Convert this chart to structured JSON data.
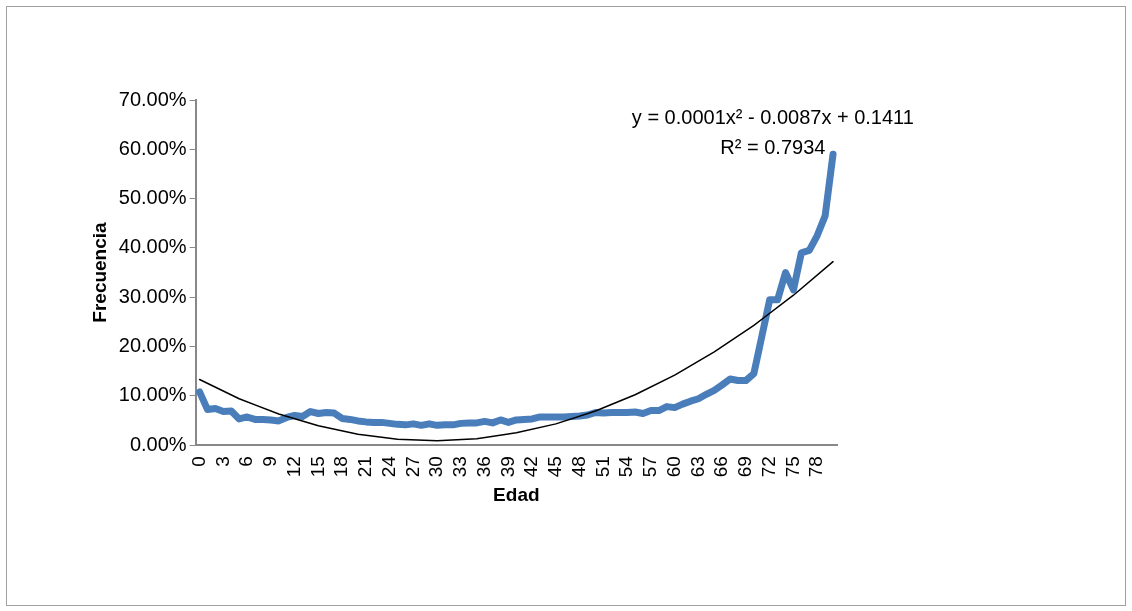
{
  "chart_data": {
    "type": "line",
    "xlabel": "Edad",
    "ylabel": "Frecuencia",
    "annotations": [
      "y = 0.0001x² - 0.0087x + 0.1411",
      "R² = 0.7934"
    ],
    "xlim": [
      -0.5,
      80.5
    ],
    "xticks": [
      0,
      3,
      6,
      9,
      12,
      15,
      18,
      21,
      24,
      27,
      30,
      33,
      36,
      39,
      42,
      45,
      48,
      51,
      54,
      57,
      60,
      63,
      66,
      69,
      72,
      75,
      78
    ],
    "ylim": [
      0,
      70
    ],
    "yticks": [
      {
        "value": 0,
        "label": "0.00%"
      },
      {
        "value": 10,
        "label": "10.00%"
      },
      {
        "value": 20,
        "label": "20.00%"
      },
      {
        "value": 30,
        "label": "30.00%"
      },
      {
        "value": 40,
        "label": "40.00%"
      },
      {
        "value": 50,
        "label": "50.00%"
      },
      {
        "value": 60,
        "label": "60.00%"
      },
      {
        "value": 70,
        "label": "70.00%"
      }
    ],
    "grid": false,
    "legend": false,
    "marker": "none",
    "line_style": "solid",
    "series": [
      {
        "color": "#4a7ebb",
        "x": [
          0,
          1,
          2,
          3,
          4,
          5,
          6,
          7,
          8,
          9,
          10,
          11,
          12,
          13,
          14,
          15,
          16,
          17,
          18,
          19,
          20,
          21,
          22,
          23,
          24,
          25,
          26,
          27,
          28,
          29,
          30,
          31,
          32,
          33,
          34,
          35,
          36,
          37,
          38,
          39,
          40,
          41,
          42,
          43,
          44,
          45,
          46,
          47,
          48,
          49,
          50,
          51,
          52,
          53,
          54,
          55,
          56,
          57,
          58,
          59,
          60,
          61,
          62,
          63,
          64,
          65,
          66,
          67,
          68,
          69,
          70,
          71,
          72,
          73,
          74,
          75,
          76,
          77,
          78,
          79,
          80
        ],
        "values": [
          10.8,
          7.2,
          7.4,
          6.8,
          6.9,
          5.3,
          5.7,
          5.2,
          5.2,
          5.1,
          4.9,
          5.6,
          6.0,
          5.8,
          6.8,
          6.4,
          6.6,
          6.5,
          5.4,
          5.2,
          4.9,
          4.7,
          4.6,
          4.6,
          4.4,
          4.2,
          4.1,
          4.3,
          4.0,
          4.3,
          4.0,
          4.1,
          4.1,
          4.4,
          4.5,
          4.5,
          4.8,
          4.5,
          5.1,
          4.6,
          5.1,
          5.2,
          5.3,
          5.7,
          5.7,
          5.7,
          5.7,
          5.8,
          5.9,
          6.1,
          6.6,
          6.5,
          6.6,
          6.6,
          6.6,
          6.7,
          6.4,
          7.0,
          7.0,
          7.8,
          7.6,
          8.3,
          8.9,
          9.4,
          10.3,
          11.1,
          12.2,
          13.4,
          13.1,
          13.1,
          14.5,
          22,
          29.5,
          29.5,
          35,
          31.5,
          39,
          39.5,
          42.5,
          46.5,
          59
        ]
      },
      {
        "type": "line",
        "color": "#000000",
        "x": [
          0,
          5,
          10,
          15,
          20,
          25,
          30,
          35,
          40,
          45,
          50,
          55,
          60,
          65,
          70,
          75,
          80
        ],
        "values": [
          13.3,
          9.4,
          6.3,
          3.9,
          2.2,
          1.2,
          0.9,
          1.3,
          2.5,
          4.3,
          6.9,
          10.2,
          14.2,
          18.9,
          24.3,
          30.4,
          37.2
        ]
      }
    ]
  }
}
